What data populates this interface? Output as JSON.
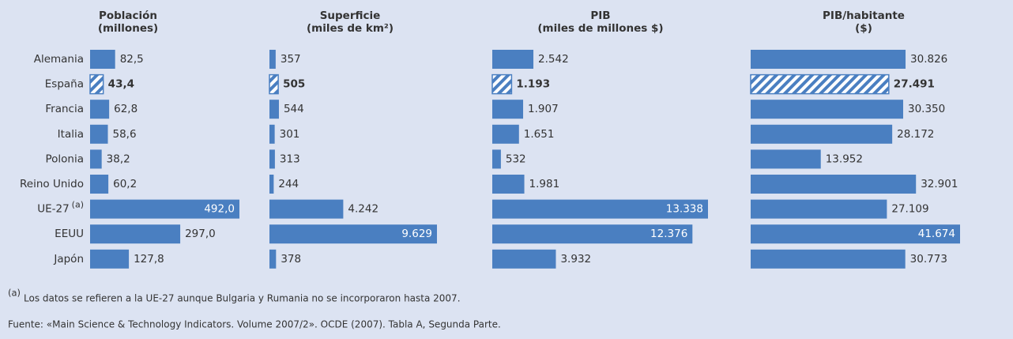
{
  "categories": [
    "Alemania",
    "España",
    "Francia",
    "Italia",
    "Polonia",
    "Reino Unido",
    "UE-27",
    "EEUU",
    "Japón"
  ],
  "category_notes": [
    null,
    null,
    null,
    null,
    null,
    null,
    "(a)",
    null,
    null
  ],
  "highlight": "España",
  "color": "#4a7fc1",
  "chart_data": [
    {
      "type": "bar",
      "orientation": "horizontal",
      "title": "Población",
      "subtitle": "(millones)",
      "values": [
        82.5,
        43.4,
        62.8,
        58.6,
        38.2,
        60.2,
        492.0,
        297.0,
        127.8
      ],
      "value_labels": [
        "82,5",
        "43,4",
        "62,8",
        "58,6",
        "38,2",
        "60,2",
        "492,0",
        "297,0",
        "127,8"
      ],
      "xlim": [
        0,
        492
      ]
    },
    {
      "type": "bar",
      "orientation": "horizontal",
      "title": "Superficie",
      "subtitle": "(miles de km²)",
      "values": [
        357,
        505,
        544,
        301,
        313,
        244,
        4242,
        9629,
        378
      ],
      "value_labels": [
        "357",
        "505",
        "544",
        "301",
        "313",
        "244",
        "4.242",
        "9.629",
        "378"
      ],
      "xlim": [
        0,
        9629
      ]
    },
    {
      "type": "bar",
      "orientation": "horizontal",
      "title": "PIB",
      "subtitle": "(miles de millones $)",
      "values": [
        2542,
        1193,
        1907,
        1651,
        532,
        1981,
        13338,
        12376,
        3932
      ],
      "value_labels": [
        "2.542",
        "1.193",
        "1.907",
        "1.651",
        "532",
        "1.981",
        "13.338",
        "12.376",
        "3.932"
      ],
      "xlim": [
        0,
        13338
      ]
    },
    {
      "type": "bar",
      "orientation": "horizontal",
      "title": "PIB/habitante",
      "subtitle": "($)",
      "values": [
        30826,
        27491,
        30350,
        28172,
        13952,
        32901,
        27109,
        41674,
        30773
      ],
      "value_labels": [
        "30.826",
        "27.491",
        "30.350",
        "28.172",
        "13.952",
        "32.901",
        "27.109",
        "41.674",
        "30.773"
      ],
      "xlim": [
        0,
        41674
      ]
    }
  ],
  "footnote": {
    "marker": "(a)",
    "text": "Los datos se refieren a la UE-27 aunque Bulgaria y Rumania no se incorporaron hasta 2007."
  },
  "source": "Fuente: «Main Science & Technology Indicators. Volume 2007/2». OCDE (2007). Tabla A, Segunda Parte."
}
